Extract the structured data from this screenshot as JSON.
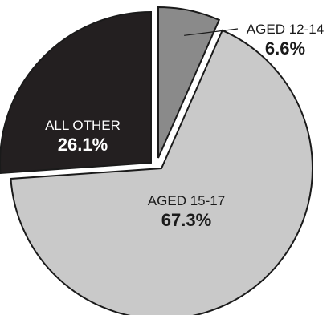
{
  "chart_data": {
    "type": "pie",
    "title": "",
    "slices": [
      {
        "label": "AGED 12-14",
        "value": 6.6,
        "value_label": "6.6%",
        "color": "#8a8a8a",
        "label_color": "#1a1a1a",
        "exploded": true
      },
      {
        "label": "AGED 15-17",
        "value": 67.3,
        "value_label": "67.3%",
        "color": "#c9c9c9",
        "label_color": "#1a1a1a",
        "exploded": false
      },
      {
        "label": "ALL OTHER",
        "value": 26.1,
        "value_label": "26.1%",
        "color": "#231f20",
        "label_color": "#ffffff",
        "exploded": true
      }
    ],
    "start_angle": "12 o'clock",
    "direction": "clockwise",
    "legend": "none",
    "callout": "AGED 12-14"
  }
}
